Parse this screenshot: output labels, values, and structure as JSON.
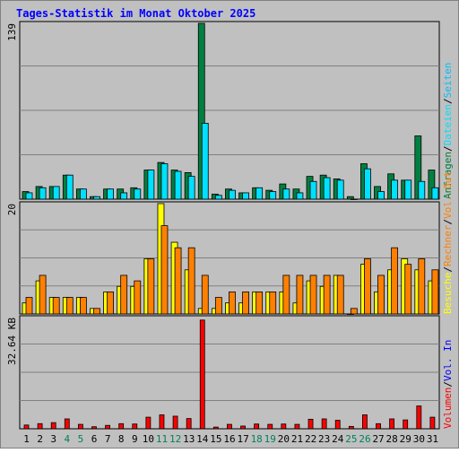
{
  "title": "Tages-Statistik im Monat Oktober 2025",
  "colors": {
    "hits": "#008040",
    "files": "#00e0ff",
    "pages": "#00c0ff",
    "visits": "#ffff00",
    "sites": "#ff8000",
    "kbytes": "#ff0000",
    "title": "#0000ff",
    "weekend": "#00805c",
    "weekday": "#000000",
    "plot_bg": "#c0c0c0",
    "frame": "#808080"
  },
  "chart_data": [
    {
      "type": "bar",
      "panel": "top",
      "ymax_label": "139",
      "ylim": [
        0,
        139
      ],
      "categories": [
        "1",
        "2",
        "3",
        "4",
        "5",
        "6",
        "7",
        "8",
        "9",
        "10",
        "11",
        "12",
        "13",
        "14",
        "15",
        "16",
        "17",
        "18",
        "19",
        "20",
        "21",
        "22",
        "23",
        "24",
        "25",
        "26",
        "27",
        "28",
        "29",
        "30",
        "31"
      ],
      "series": [
        {
          "name": "Anfragen",
          "values": [
            6,
            10,
            10,
            19,
            8,
            2,
            8,
            8,
            9,
            23,
            29,
            23,
            21,
            139,
            4,
            8,
            5,
            9,
            7,
            12,
            8,
            18,
            19,
            16,
            2,
            28,
            10,
            20,
            15,
            50,
            23
          ]
        },
        {
          "name": "Dateien",
          "values": [
            5,
            9,
            10,
            19,
            8,
            2,
            8,
            5,
            8,
            23,
            28,
            22,
            18,
            60,
            3,
            7,
            5,
            9,
            6,
            8,
            5,
            14,
            17,
            15,
            0,
            24,
            6,
            15,
            15,
            14,
            9
          ]
        }
      ],
      "right_label": [
        "Anfragen",
        "Dateien",
        "Seiten"
      ]
    },
    {
      "type": "bar",
      "panel": "middle",
      "ymax_label": "20",
      "ylim": [
        0,
        20
      ],
      "categories": [
        "1",
        "2",
        "3",
        "4",
        "5",
        "6",
        "7",
        "8",
        "9",
        "10",
        "11",
        "12",
        "13",
        "14",
        "15",
        "16",
        "17",
        "18",
        "19",
        "20",
        "21",
        "22",
        "23",
        "24",
        "25",
        "26",
        "27",
        "28",
        "29",
        "30",
        "31"
      ],
      "series": [
        {
          "name": "Besuche",
          "values": [
            2,
            6,
            3,
            3,
            3,
            1,
            4,
            5,
            5,
            10,
            20,
            13,
            8,
            1,
            1,
            2,
            2,
            4,
            4,
            4,
            2,
            6,
            5,
            7,
            0,
            9,
            4,
            8,
            10,
            8,
            6
          ]
        },
        {
          "name": "Rechner",
          "values": [
            3,
            7,
            3,
            3,
            3,
            1,
            4,
            7,
            6,
            10,
            16,
            12,
            12,
            7,
            3,
            4,
            4,
            4,
            4,
            7,
            7,
            7,
            7,
            7,
            1,
            10,
            7,
            12,
            9,
            10,
            8
          ]
        }
      ],
      "right_label": [
        "Besuche",
        "Rechner",
        "Vol. Out"
      ]
    },
    {
      "type": "bar",
      "panel": "bottom",
      "ymax_label": "32.64 KB",
      "ylim": [
        0,
        32.64
      ],
      "categories": [
        "1",
        "2",
        "3",
        "4",
        "5",
        "6",
        "7",
        "8",
        "9",
        "10",
        "11",
        "12",
        "13",
        "14",
        "15",
        "16",
        "17",
        "18",
        "19",
        "20",
        "21",
        "22",
        "23",
        "24",
        "25",
        "26",
        "27",
        "28",
        "29",
        "30",
        "31"
      ],
      "series": [
        {
          "name": "Volumen",
          "values": [
            1.1,
            1.5,
            1.8,
            2.9,
            1.3,
            0.6,
            1.0,
            1.5,
            1.4,
            3.4,
            4.1,
            3.7,
            3.0,
            31.9,
            0.5,
            1.3,
            0.8,
            1.4,
            1.3,
            1.4,
            1.3,
            2.8,
            2.9,
            2.5,
            0.7,
            4.1,
            1.5,
            2.9,
            2.6,
            6.7,
            3.4
          ]
        }
      ],
      "right_label": [
        "Volumen",
        "Vol. In"
      ]
    }
  ],
  "weekend_days": [
    "4",
    "5",
    "11",
    "12",
    "18",
    "19",
    "25",
    "26"
  ]
}
